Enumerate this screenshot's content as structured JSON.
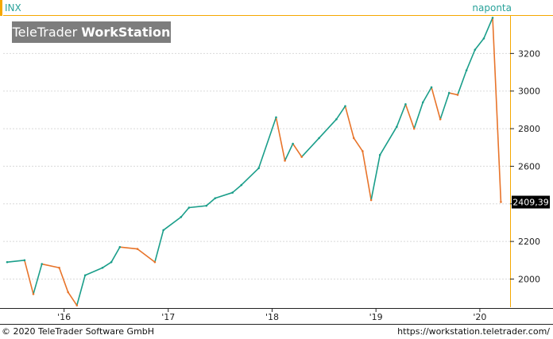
{
  "header": {
    "symbol": "INX",
    "period": "naponta",
    "watermark_light": "TeleTrader ",
    "watermark_bold": "WorkStation"
  },
  "footer": {
    "copyright": "© 2020 TeleTrader Software GmbH",
    "url": "https://workstation.teletrader.com/"
  },
  "colors": {
    "up": "#1a9e8a",
    "down": "#e8742a",
    "accent_orange": "#f5a800",
    "grid": "#d9d9d9",
    "axis": "#222222",
    "last_price_bg": "#000000"
  },
  "chart_data": {
    "type": "line",
    "title": "",
    "series_name": "INX",
    "ylim": [
      1850,
      3400
    ],
    "y_ticks": [
      2000,
      2200,
      2400,
      2600,
      2800,
      3000,
      3200
    ],
    "x_tick_labels": [
      "'16",
      "'17",
      "'18",
      "'19",
      "'20"
    ],
    "last_value_label": "2409,39",
    "last_value": 2409.39,
    "grid": "horizontal dotted",
    "x": [
      "2015-06",
      "2015-08",
      "2015-09",
      "2015-10",
      "2015-12",
      "2016-01",
      "2016-02",
      "2016-03",
      "2016-05",
      "2016-06",
      "2016-07",
      "2016-09",
      "2016-11",
      "2016-12",
      "2017-02",
      "2017-03",
      "2017-05",
      "2017-06",
      "2017-08",
      "2017-09",
      "2017-11",
      "2018-01",
      "2018-02",
      "2018-03",
      "2018-04",
      "2018-06",
      "2018-08",
      "2018-09",
      "2018-10",
      "2018-11",
      "2018-12",
      "2019-01",
      "2019-03",
      "2019-04",
      "2019-05",
      "2019-06",
      "2019-07",
      "2019-08",
      "2019-09",
      "2019-10",
      "2019-11",
      "2019-12",
      "2020-01",
      "2020-02",
      "2020-03"
    ],
    "values": [
      2090,
      2100,
      1920,
      2080,
      2060,
      1930,
      1860,
      2020,
      2060,
      2090,
      2170,
      2160,
      2090,
      2260,
      2330,
      2380,
      2390,
      2430,
      2460,
      2500,
      2590,
      2860,
      2630,
      2720,
      2650,
      2750,
      2850,
      2920,
      2750,
      2680,
      2420,
      2660,
      2810,
      2930,
      2800,
      2940,
      3020,
      2850,
      2990,
      2980,
      3110,
      3220,
      3280,
      3390,
      2410
    ]
  }
}
